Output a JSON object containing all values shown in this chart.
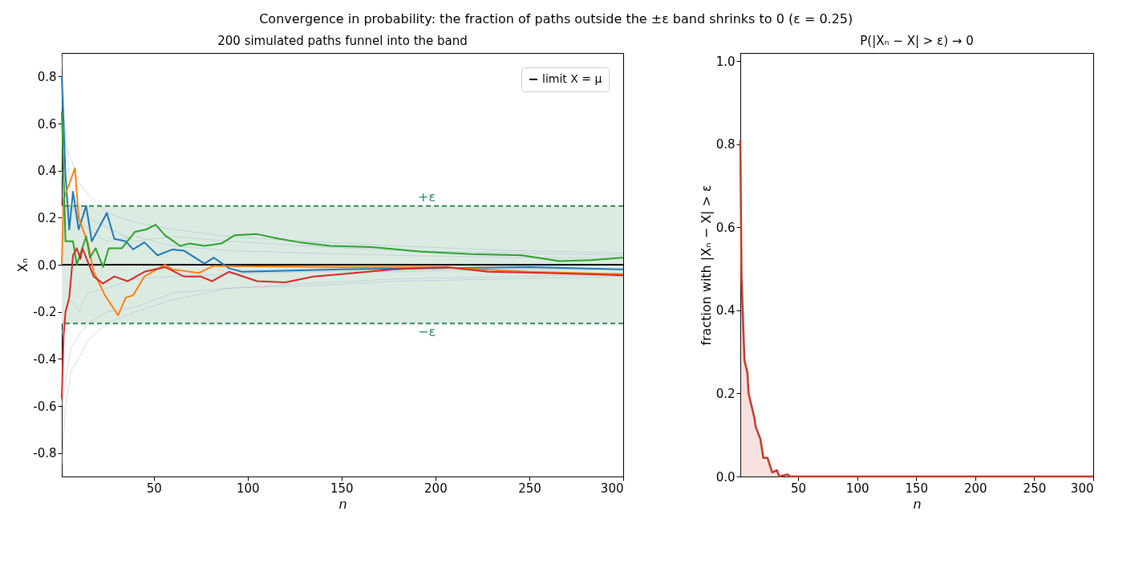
{
  "chart_data": [
    {
      "type": "line",
      "title": "200 simulated paths funnel into the band",
      "annotations": [
        "Convergence in probability: the fraction of paths outside the ±ε band shrinks to 0  (ε = 0.25)"
      ],
      "xlabel": "n",
      "ylabel": "Xₙ",
      "xlim": [
        1,
        300
      ],
      "xticks": [
        50,
        100,
        150,
        200,
        250,
        300
      ],
      "ylim": [
        -0.9,
        0.9
      ],
      "yticks": [
        {
          "value": -0.8,
          "label": "-0.8"
        },
        {
          "value": -0.6,
          "label": "-0.6"
        },
        {
          "value": -0.4,
          "label": "-0.4"
        },
        {
          "value": -0.2,
          "label": "-0.2"
        },
        {
          "value": 0,
          "label": "0.0"
        },
        {
          "value": 0.2,
          "label": "0.2"
        },
        {
          "value": 0.4,
          "label": "0.4"
        },
        {
          "value": 0.6,
          "label": "0.6"
        },
        {
          "value": 0.8,
          "label": "0.8"
        }
      ],
      "legend": "top right",
      "grid": false,
      "bands": [
        {
          "axis": "y",
          "from": -0.25,
          "to": 0.25,
          "color": "#dcebe2"
        }
      ],
      "ref_lines": [
        {
          "axis": "y",
          "value": 0.25,
          "label": "+ε",
          "color": "#2e8b57",
          "line_style": "dashed"
        },
        {
          "axis": "y",
          "value": -0.25,
          "label": "−ε",
          "color": "#2e8b57",
          "line_style": "dashed"
        }
      ],
      "series": [
        {
          "color": "#a3b8cc",
          "x": [
            1,
            3,
            6,
            10,
            15,
            25,
            40,
            60,
            90,
            130,
            180,
            240,
            300
          ],
          "values": [
            0.9,
            0.5,
            0.45,
            0.35,
            0.3,
            0.22,
            0.18,
            0.15,
            0.12,
            0.1,
            0.08,
            0.06,
            0.05
          ]
        },
        {
          "color": "#a3b8cc",
          "x": [
            1,
            3,
            6,
            10,
            15,
            25,
            40,
            60,
            90,
            130,
            180,
            240,
            300
          ],
          "values": [
            -0.85,
            -0.6,
            -0.45,
            -0.4,
            -0.32,
            -0.25,
            -0.2,
            -0.15,
            -0.1,
            -0.09,
            -0.07,
            -0.06,
            -0.05
          ]
        },
        {
          "color": "#a3b8cc",
          "x": [
            1,
            3,
            6,
            10,
            15,
            25,
            40,
            60,
            90,
            130,
            180,
            240,
            300
          ],
          "values": [
            0.4,
            0.3,
            0.25,
            0.2,
            0.15,
            0.1,
            0.12,
            0.08,
            0.06,
            0.05,
            0.04,
            0.03,
            0.03
          ]
        },
        {
          "color": "#a3b8cc",
          "x": [
            1,
            3,
            6,
            10,
            15,
            25,
            40,
            60,
            90,
            130,
            180,
            240,
            300
          ],
          "values": [
            -0.3,
            -0.2,
            -0.15,
            -0.2,
            -0.12,
            -0.1,
            -0.06,
            -0.05,
            -0.04,
            -0.03,
            -0.03,
            -0.02,
            -0.02
          ]
        },
        {
          "color": "#a3b8cc",
          "x": [
            1,
            3,
            6,
            10,
            15,
            25,
            40,
            60,
            90,
            130,
            180,
            240,
            300
          ],
          "values": [
            0.7,
            0.55,
            0.3,
            0.25,
            0.2,
            0.16,
            0.1,
            0.12,
            0.1,
            0.08,
            0.06,
            0.05,
            0.04
          ]
        },
        {
          "color": "#a3b8cc",
          "x": [
            1,
            3,
            6,
            10,
            15,
            25,
            40,
            60,
            90,
            130,
            180,
            240,
            300
          ],
          "values": [
            -0.6,
            -0.5,
            -0.35,
            -0.3,
            -0.25,
            -0.2,
            -0.18,
            -0.12,
            -0.1,
            -0.08,
            -0.06,
            -0.05,
            -0.04
          ]
        },
        {
          "name": "limit X = μ",
          "color": "#000000",
          "x": [
            1,
            300
          ],
          "values": [
            0,
            0
          ]
        },
        {
          "color": "#1f77b4",
          "x": [
            1,
            3,
            5,
            7,
            10,
            14,
            17,
            25,
            29,
            35,
            39,
            45,
            52,
            60,
            66,
            77,
            82,
            90,
            97,
            150,
            250,
            300
          ],
          "values": [
            0.8,
            0.38,
            0.15,
            0.31,
            0.15,
            0.25,
            0.1,
            0.22,
            0.11,
            0.1,
            0.065,
            0.095,
            0.04,
            0.065,
            0.06,
            0.005,
            0.03,
            -0.015,
            -0.03,
            -0.02,
            -0.01,
            -0.02
          ]
        },
        {
          "color": "#ff7f0e",
          "x": [
            1,
            2,
            3,
            8,
            10,
            15,
            18,
            24,
            31,
            35,
            39,
            45,
            56,
            60,
            74,
            82,
            150,
            200,
            250,
            300
          ],
          "values": [
            0.0,
            0.28,
            0.3,
            0.41,
            0.2,
            0.09,
            -0.03,
            -0.13,
            -0.215,
            -0.14,
            -0.13,
            -0.05,
            0.0,
            -0.02,
            -0.035,
            -0.005,
            -0.01,
            -0.01,
            -0.03,
            -0.04
          ]
        },
        {
          "color": "#2ca02c",
          "x": [
            1,
            3,
            7,
            9,
            14,
            16,
            19,
            23,
            26,
            33,
            40,
            46,
            51,
            56,
            64,
            69,
            77,
            86,
            93,
            105,
            117,
            128,
            144,
            166,
            193,
            219,
            246,
            266,
            283,
            300
          ],
          "values": [
            0.65,
            0.1,
            0.1,
            0.0,
            0.12,
            0.03,
            0.07,
            -0.01,
            0.07,
            0.07,
            0.14,
            0.15,
            0.17,
            0.125,
            0.08,
            0.09,
            0.08,
            0.09,
            0.125,
            0.13,
            0.11,
            0.095,
            0.08,
            0.075,
            0.055,
            0.045,
            0.04,
            0.015,
            0.02,
            0.03
          ]
        },
        {
          "color": "#d62728",
          "x": [
            1,
            2,
            3,
            5,
            7,
            9,
            11,
            12,
            15,
            18,
            23,
            29,
            36,
            45,
            56,
            66,
            75,
            81,
            90,
            105,
            120,
            135,
            150,
            178,
            206,
            228,
            258,
            300
          ],
          "values": [
            -0.57,
            -0.3,
            -0.2,
            -0.14,
            0.04,
            0.07,
            0.025,
            0.07,
            0.01,
            -0.05,
            -0.08,
            -0.05,
            -0.07,
            -0.03,
            -0.01,
            -0.05,
            -0.05,
            -0.07,
            -0.03,
            -0.07,
            -0.075,
            -0.05,
            -0.04,
            -0.02,
            -0.01,
            -0.03,
            -0.035,
            -0.045
          ]
        }
      ]
    },
    {
      "type": "area",
      "title": "P(|Xₙ − X| > ε) → 0",
      "xlabel": "n",
      "ylabel": "fraction with |Xₙ − X| > ε",
      "xlim": [
        1,
        300
      ],
      "xticks": [
        50,
        100,
        150,
        200,
        250,
        300
      ],
      "ylim": [
        0,
        1.02
      ],
      "yticks": [
        {
          "value": 0,
          "label": "0.0"
        },
        {
          "value": 0.2,
          "label": "0.2"
        },
        {
          "value": 0.4,
          "label": "0.4"
        },
        {
          "value": 0.6,
          "label": "0.6"
        },
        {
          "value": 0.8,
          "label": "0.8"
        },
        {
          "value": 1,
          "label": "1.0"
        }
      ],
      "grid": false,
      "series": [
        {
          "color": "#c0392b",
          "x": [
            1,
            2,
            3,
            4.5,
            7,
            8,
            10.5,
            13,
            14,
            18,
            20.5,
            24,
            28,
            32,
            34,
            41,
            43,
            300
          ],
          "values": [
            0.81,
            0.48,
            0.4,
            0.28,
            0.25,
            0.2,
            0.17,
            0.14,
            0.12,
            0.09,
            0.045,
            0.045,
            0.01,
            0.015,
            0,
            0.005,
            0,
            0
          ]
        }
      ]
    }
  ]
}
